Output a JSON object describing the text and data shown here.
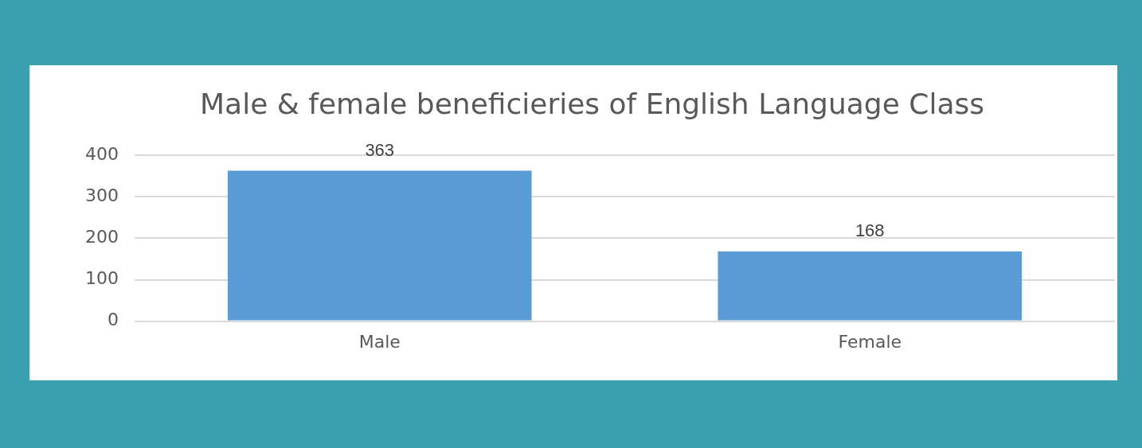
{
  "chart_data": {
    "type": "bar",
    "title": "Male & female beneficieries of English Language Class",
    "categories": [
      "Male",
      "Female"
    ],
    "values": [
      363,
      168
    ],
    "color": "#5b9bd5",
    "ylim": [
      0,
      400
    ],
    "yticks": [
      0,
      100,
      200,
      300,
      400
    ],
    "grid": "y",
    "data_labels": true
  }
}
